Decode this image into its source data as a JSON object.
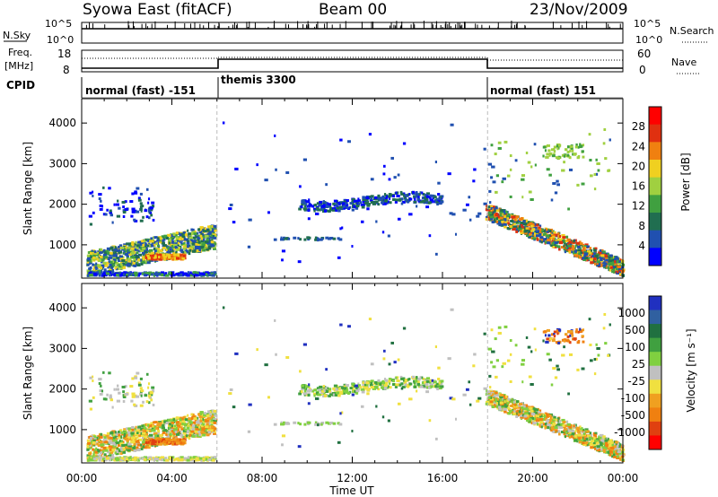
{
  "header": {
    "radar": "Syowa East (fitACF)",
    "beam": "Beam 00",
    "date": "23/Nov/2009"
  },
  "summary": {
    "nsky_label": "N.Sky",
    "nsky_top": "10^5",
    "nsky_bottom": "10^0",
    "nsearch_label": "N.Search",
    "nsearch_top": "10^5",
    "nsearch_bottom": "10^0",
    "freq_label": "Freq.",
    "freq_unit": "[MHz]",
    "freq_top": "18",
    "freq_bottom": "8",
    "nave_label": "Nave",
    "nave_top": "60",
    "nave_bottom": "0",
    "cpid_label": "CPID",
    "cpid_segments": [
      {
        "label": "normal (fast) -151",
        "start_h": 0,
        "end_h": 6
      },
      {
        "label": "themis 3300",
        "start_h": 6,
        "end_h": 18
      },
      {
        "label": "normal (fast) 151",
        "start_h": 18,
        "end_h": 24
      }
    ]
  },
  "axes": {
    "ylabel": "Slant Range [km]",
    "xlabel": "Time UT",
    "yticks": [
      "1000",
      "2000",
      "3000",
      "4000"
    ],
    "xticks": [
      "00:00",
      "04:00",
      "08:00",
      "12:00",
      "16:00",
      "20:00",
      "00:00"
    ]
  },
  "power_colorbar": {
    "label": "Power [dB]",
    "ticks": [
      "4",
      "8",
      "12",
      "16",
      "20",
      "24",
      "28"
    ],
    "colors": [
      "#0000ff",
      "#2050b0",
      "#206e50",
      "#40a040",
      "#a0d040",
      "#f0d020",
      "#f08010",
      "#e03010",
      "#ff0000"
    ]
  },
  "velocity_colorbar": {
    "label": "Velocity [m s⁻¹]",
    "ticks": [
      "1000",
      "500",
      "100",
      "25",
      "-25",
      "-100",
      "-500",
      "-1000"
    ],
    "colors": [
      "#2030c0",
      "#3060a0",
      "#207040",
      "#40a040",
      "#80d040",
      "#c0c0c0",
      "#f0e040",
      "#f0a020",
      "#f08010",
      "#e04010",
      "#ff0000"
    ]
  },
  "chart_data": [
    {
      "type": "heatmap",
      "title": "Power",
      "xlabel": "Time UT",
      "ylabel": "Slant Range [km]",
      "xlim": [
        0,
        24
      ],
      "ylim": [
        180,
        4600
      ],
      "colorbar": {
        "label": "Power [dB]",
        "range": [
          0,
          32
        ]
      },
      "regions": [
        {
          "t": [
            0.3,
            5.8
          ],
          "r": [
            400,
            1600
          ],
          "value": "8-20 dB"
        },
        {
          "t": [
            9.7,
            15.8
          ],
          "r": [
            1800,
            2400
          ],
          "value": "4-8 dB"
        },
        {
          "t": [
            18.0,
            24.0
          ],
          "r": [
            400,
            1500
          ],
          "value": "8-24 dB"
        },
        {
          "t": [
            20.5,
            22.0
          ],
          "r": [
            3000,
            3600
          ],
          "value": "16 dB"
        }
      ]
    },
    {
      "type": "heatmap",
      "title": "Velocity",
      "xlabel": "Time UT",
      "ylabel": "Slant Range [km]",
      "xlim": [
        0,
        24
      ],
      "ylim": [
        180,
        4600
      ],
      "colorbar": {
        "label": "Velocity [m s-1]",
        "range": [
          -1000,
          1000
        ]
      },
      "regions": [
        {
          "t": [
            0.3,
            5.8
          ],
          "r": [
            400,
            1600
          ],
          "value": "-25 to -500 m/s"
        },
        {
          "t": [
            9.7,
            15.8
          ],
          "r": [
            1800,
            2400
          ],
          "value": "-25 to 100 m/s"
        },
        {
          "t": [
            18.0,
            24.0
          ],
          "r": [
            400,
            1500
          ],
          "value": "-100 to -500 m/s"
        }
      ]
    }
  ]
}
